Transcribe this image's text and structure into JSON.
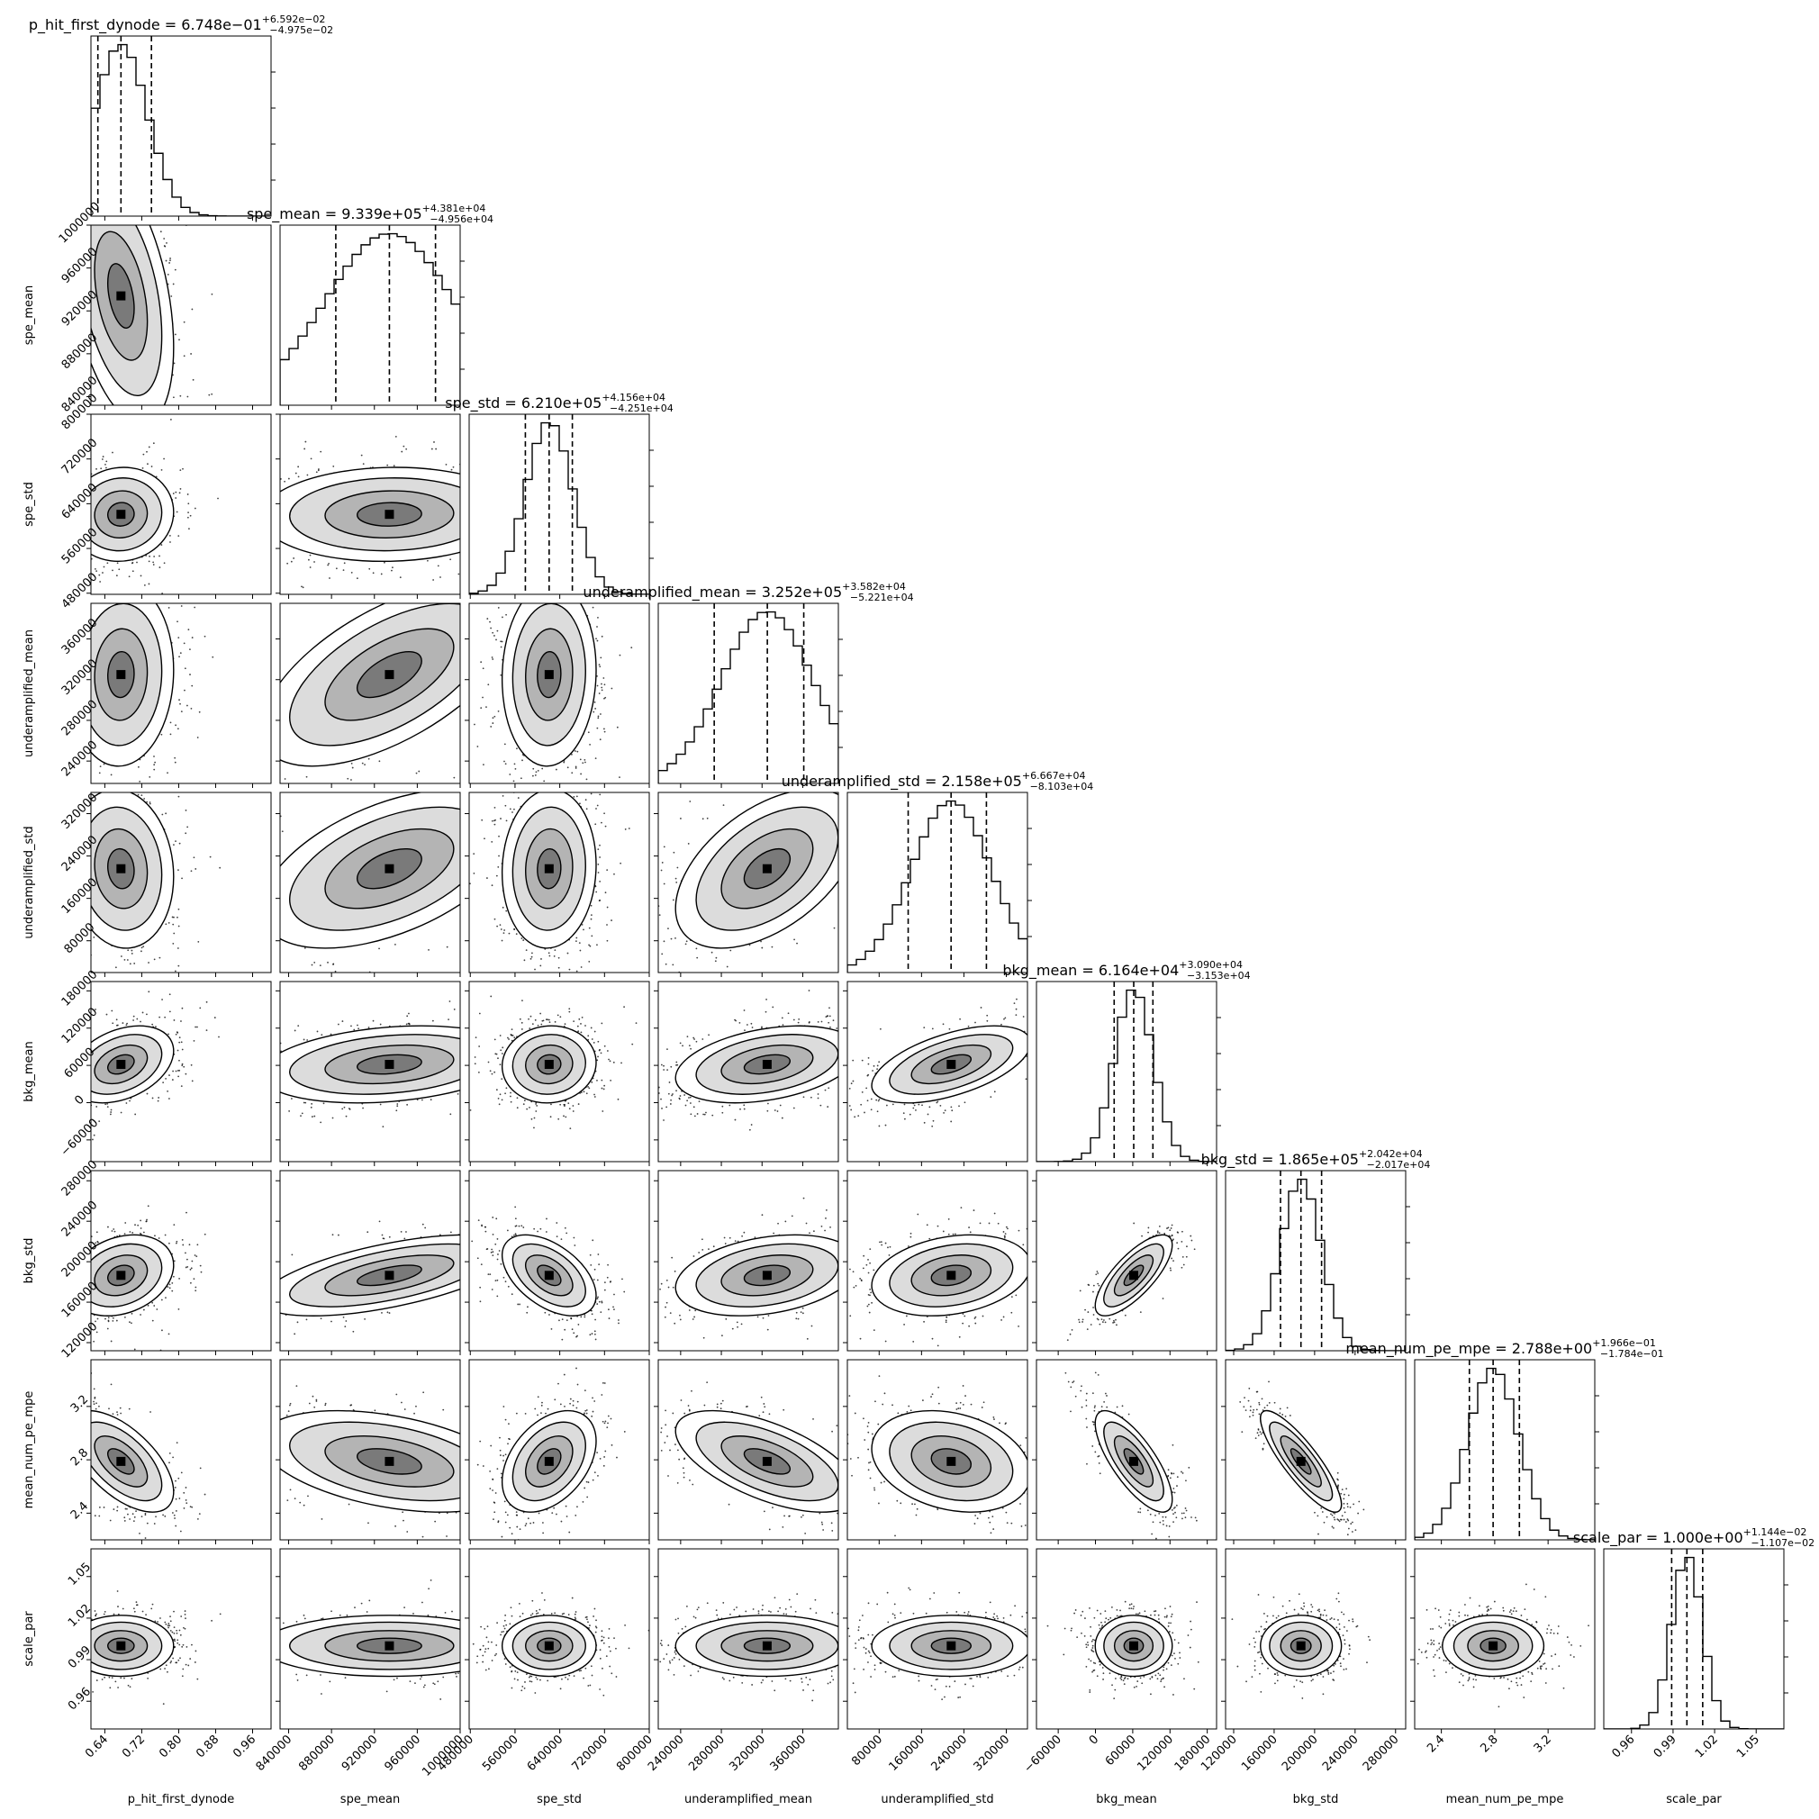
{
  "chart_data": {
    "type": "corner",
    "parameters": [
      {
        "name": "p_hit_first_dynode",
        "median": "6.748e−01",
        "plus": "+6.592e−02",
        "minus": "−4.975e−02",
        "xrange": [
          0.61,
          1.0
        ],
        "ticks": [
          0.64,
          0.72,
          0.8,
          0.88,
          0.96
        ],
        "tick_labels": [
          "0.64",
          "0.72",
          "0.80",
          "0.88",
          "0.96"
        ],
        "center": 0.675,
        "sd": 0.057,
        "quantiles": [
          0.625,
          0.675,
          0.741
        ]
      },
      {
        "name": "spe_mean",
        "median": "9.339e+05",
        "plus": "+4.381e+04",
        "minus": "−4.956e+04",
        "xrange": [
          832000,
          1000000
        ],
        "ticks": [
          840000,
          880000,
          920000,
          960000,
          1000000
        ],
        "tick_labels": [
          "840000",
          "880000",
          "920000",
          "960000",
          "1000000"
        ],
        "center": 934000,
        "sd": 60000,
        "quantiles": [
          884000,
          934000,
          977000
        ]
      },
      {
        "name": "spe_std",
        "median": "6.210e+05",
        "plus": "+4.156e+04",
        "minus": "−4.251e+04",
        "xrange": [
          478000,
          800000
        ],
        "ticks": [
          480000,
          560000,
          640000,
          720000,
          800000
        ],
        "tick_labels": [
          "480000",
          "560000",
          "640000",
          "720000",
          "800000"
        ],
        "center": 621000,
        "sd": 42000,
        "quantiles": [
          578500,
          621000,
          662500
        ]
      },
      {
        "name": "underamplified_mean",
        "median": "3.252e+05",
        "plus": "+3.582e+04",
        "minus": "−5.221e+04",
        "xrange": [
          218000,
          395000
        ],
        "ticks": [
          240000,
          280000,
          320000,
          360000
        ],
        "tick_labels": [
          "240000",
          "280000",
          "320000",
          "360000"
        ],
        "center": 325000,
        "sd": 45000,
        "quantiles": [
          273000,
          325200,
          361000
        ]
      },
      {
        "name": "underamplified_std",
        "median": "2.158e+05",
        "plus": "+6.667e+04",
        "minus": "−8.103e+04",
        "xrange": [
          20000,
          360000
        ],
        "ticks": [
          80000,
          160000,
          240000,
          320000
        ],
        "tick_labels": [
          "80000",
          "160000",
          "240000",
          "320000"
        ],
        "center": 216000,
        "sd": 75000,
        "quantiles": [
          134800,
          215800,
          282500
        ]
      },
      {
        "name": "bkg_mean",
        "median": "6.164e+04",
        "plus": "+3.090e+04",
        "minus": "−3.153e+04",
        "xrange": [
          -95000,
          195000
        ],
        "ticks": [
          -60000,
          0,
          60000,
          120000,
          180000
        ],
        "tick_labels": [
          "−60000",
          "0",
          "60000",
          "120000",
          "180000"
        ],
        "center": 61600,
        "sd": 31000,
        "quantiles": [
          30100,
          61600,
          92500
        ]
      },
      {
        "name": "bkg_std",
        "median": "1.865e+05",
        "plus": "+2.042e+04",
        "minus": "−2.017e+04",
        "xrange": [
          112000,
          290000
        ],
        "ticks": [
          120000,
          160000,
          200000,
          240000,
          280000
        ],
        "tick_labels": [
          "120000",
          "160000",
          "200000",
          "240000",
          "280000"
        ],
        "center": 186500,
        "sd": 20000,
        "quantiles": [
          166300,
          186500,
          206900
        ]
      },
      {
        "name": "mean_num_pe_mpe",
        "median": "2.788e+00",
        "plus": "+1.966e−01",
        "minus": "−1.784e−01",
        "xrange": [
          2.2,
          3.55
        ],
        "ticks": [
          2.4,
          2.8,
          3.2
        ],
        "tick_labels": [
          "2.4",
          "2.8",
          "3.2"
        ],
        "center": 2.788,
        "sd": 0.19,
        "quantiles": [
          2.61,
          2.788,
          2.985
        ]
      },
      {
        "name": "scale_par",
        "median": "1.000e+00",
        "plus": "+1.144e−02",
        "minus": "−1.107e−02",
        "xrange": [
          0.94,
          1.07
        ],
        "ticks": [
          0.96,
          0.99,
          1.02,
          1.05
        ],
        "tick_labels": [
          "0.96",
          "0.99",
          "1.02",
          "1.05"
        ],
        "center": 1.0,
        "sd": 0.011,
        "quantiles": [
          0.989,
          1.0,
          1.0114
        ]
      }
    ],
    "correlations": [
      [
        1,
        -0.4,
        0.05,
        0.05,
        -0.1,
        0.35,
        0.25,
        -0.6,
        0
      ],
      [
        -0.4,
        1,
        0.05,
        0.6,
        0.5,
        0.25,
        0.6,
        -0.4,
        0
      ],
      [
        0.05,
        0.05,
        1,
        0.05,
        0.05,
        0.05,
        -0.5,
        0.4,
        0
      ],
      [
        0.05,
        0.6,
        0.05,
        1,
        0.5,
        0.35,
        0.3,
        -0.6,
        0
      ],
      [
        -0.1,
        0.5,
        0.05,
        0.5,
        1,
        0.55,
        0.25,
        -0.25,
        0
      ],
      [
        0.35,
        0.25,
        0.05,
        0.35,
        0.55,
        1,
        0.75,
        -0.75,
        0
      ],
      [
        0.25,
        0.6,
        -0.5,
        0.3,
        0.25,
        0.75,
        1,
        -0.85,
        0
      ],
      [
        -0.6,
        -0.4,
        0.4,
        -0.6,
        -0.25,
        -0.75,
        -0.85,
        1,
        0
      ],
      [
        0,
        0,
        0,
        0,
        0,
        0,
        0,
        0,
        1
      ]
    ],
    "diagonal": "1D histograms with dashed quantile lines",
    "off_diagonal": "2D histograms with contour lines and scatter points",
    "grid": false
  }
}
